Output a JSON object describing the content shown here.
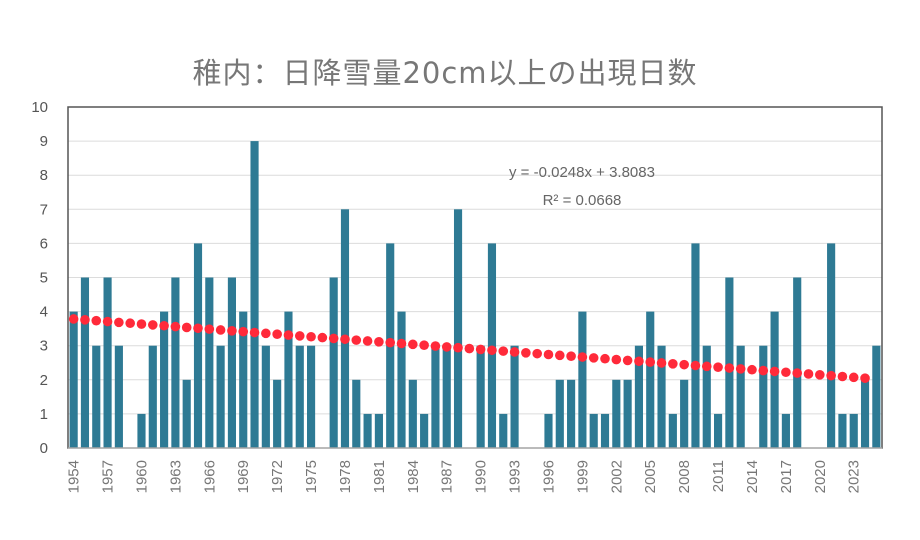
{
  "chart_data": {
    "type": "bar",
    "title": "稚内：日降雪量20cm以上の出現日数",
    "xlabel": "",
    "ylabel": "",
    "ylim": [
      0,
      10
    ],
    "yticks": [
      0,
      1,
      2,
      3,
      4,
      5,
      6,
      7,
      8,
      9,
      10
    ],
    "x_tick_labels": [
      "1954",
      "1957",
      "1960",
      "1963",
      "1966",
      "1969",
      "1972",
      "1975",
      "1978",
      "1981",
      "1984",
      "1987",
      "1990",
      "1993",
      "1996",
      "1999",
      "2002",
      "2005",
      "2008",
      "2011",
      "2014",
      "2017",
      "2020",
      "2023"
    ],
    "categories": [
      1954,
      1955,
      1956,
      1957,
      1958,
      1959,
      1960,
      1961,
      1962,
      1963,
      1964,
      1965,
      1966,
      1967,
      1968,
      1969,
      1970,
      1971,
      1972,
      1973,
      1974,
      1975,
      1976,
      1977,
      1978,
      1979,
      1980,
      1981,
      1982,
      1983,
      1984,
      1985,
      1986,
      1987,
      1988,
      1989,
      1990,
      1991,
      1992,
      1993,
      1994,
      1995,
      1996,
      1997,
      1998,
      1999,
      2000,
      2001,
      2002,
      2003,
      2004,
      2005,
      2006,
      2007,
      2008,
      2009,
      2010,
      2011,
      2012,
      2013,
      2014,
      2015,
      2016,
      2017,
      2018,
      2019,
      2020,
      2021,
      2022,
      2023,
      2024,
      2025
    ],
    "values": [
      4,
      5,
      3,
      5,
      3,
      0,
      1,
      3,
      4,
      5,
      2,
      6,
      5,
      3,
      5,
      4,
      9,
      3,
      2,
      4,
      3,
      3,
      0,
      5,
      7,
      2,
      1,
      1,
      6,
      4,
      2,
      1,
      3,
      3,
      7,
      0,
      3,
      6,
      1,
      3,
      0,
      0,
      1,
      2,
      2,
      4,
      1,
      1,
      2,
      2,
      3,
      4,
      3,
      1,
      2,
      6,
      3,
      1,
      5,
      3,
      0,
      3,
      4,
      1,
      5,
      0,
      0,
      6,
      1,
      1,
      2,
      3
    ],
    "grid": true,
    "bar_color": "#2e7a94",
    "trendline": {
      "type": "linear",
      "slope": -0.0248,
      "intercept": 3.8083,
      "color": "#ff2a3a",
      "style": "dotted",
      "equation_label": "y = -0.0248x + 3.8083",
      "r2_label": "R² = 0.0668"
    }
  }
}
